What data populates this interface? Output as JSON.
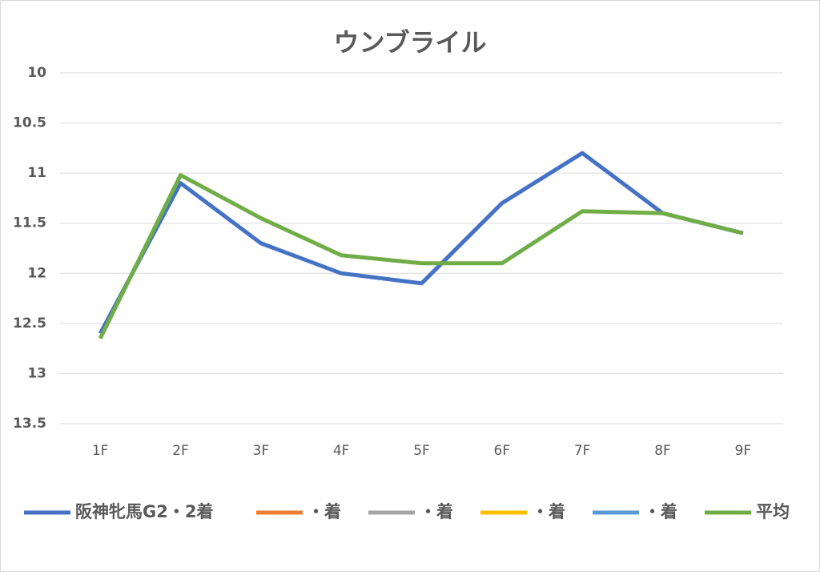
{
  "chart_data": {
    "type": "line",
    "title": "ウンブライル",
    "categories": [
      "1F",
      "2F",
      "3F",
      "4F",
      "5F",
      "6F",
      "7F",
      "8F",
      "9F"
    ],
    "series": [
      {
        "name": "阪神牝馬G2・2着",
        "color": "#4472c4",
        "values": [
          12.6,
          11.1,
          11.7,
          12.0,
          12.1,
          11.3,
          10.8,
          11.4,
          11.6
        ]
      },
      {
        "name": "・着",
        "color": "#ed7d31",
        "values": [
          null,
          null,
          null,
          null,
          null,
          null,
          null,
          null,
          null
        ]
      },
      {
        "name": "・着",
        "color": "#a5a5a5",
        "values": [
          null,
          null,
          null,
          null,
          null,
          null,
          null,
          null,
          null
        ]
      },
      {
        "name": "・着",
        "color": "#ffc000",
        "values": [
          null,
          null,
          null,
          null,
          null,
          null,
          null,
          null,
          null
        ]
      },
      {
        "name": "・着",
        "color": "#5b9bd5",
        "values": [
          null,
          null,
          null,
          null,
          null,
          null,
          null,
          null,
          null
        ]
      },
      {
        "name": "平均",
        "color": "#70ad47",
        "values": [
          12.65,
          11.02,
          11.45,
          11.82,
          11.9,
          11.9,
          11.38,
          11.4,
          11.6
        ]
      }
    ],
    "ylim": [
      10,
      13.5
    ],
    "yticks": [
      10,
      10.5,
      11,
      11.5,
      12,
      12.5,
      13,
      13.5
    ],
    "y_reversed": true,
    "grid": true,
    "legend": "bottom"
  }
}
